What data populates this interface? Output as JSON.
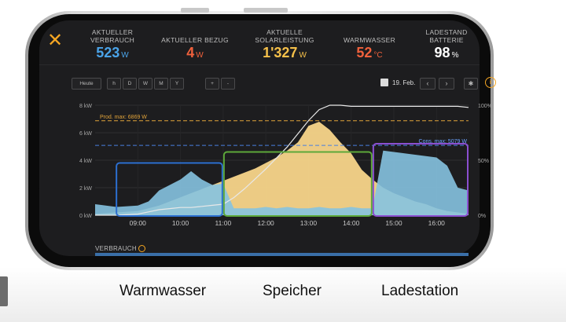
{
  "header": {
    "close_glyph": "✕",
    "stats": [
      {
        "label": "AKTUELLER\nVERBRAUCH",
        "value": "523",
        "unit": "W",
        "color": "#4aa3e8"
      },
      {
        "label": "AKTUELLER BEZUG",
        "value": "4",
        "unit": "W",
        "color": "#f0613c"
      },
      {
        "label": "AKTUELLE\nSOLARLEISTUNG",
        "value": "1'327",
        "unit": "W",
        "color": "#f5c04a"
      },
      {
        "label": "WARMWASSER",
        "value": "52",
        "unit": "°C",
        "color": "#f0613c"
      },
      {
        "label": "LADESTAND\nBATTERIE",
        "value": "98",
        "unit": "%",
        "color": "#ffffff"
      }
    ]
  },
  "controls": {
    "today": "Heute",
    "ranges": [
      "h",
      "D",
      "W",
      "M",
      "Y"
    ],
    "zoom_in": "+",
    "zoom_out": "-",
    "date": "19. Feb.",
    "prev": "‹",
    "next": "›",
    "settings_glyph": "✱",
    "info_glyph": "i"
  },
  "footer": {
    "label": "VERBRAUCH"
  },
  "captions": [
    "Warmwasser",
    "Speicher",
    "Ladestation"
  ],
  "chart_data": {
    "type": "area",
    "x_ticks": [
      "09:00",
      "10:00",
      "11:00",
      "12:00",
      "13:00",
      "14:00",
      "15:00",
      "16:00"
    ],
    "y_ticks": [
      "0 kW",
      "2 kW",
      "4 kW",
      "6 kW",
      "8 kW"
    ],
    "y2_ticks": [
      "0%",
      "50%",
      "100%"
    ],
    "ylim": [
      0,
      8
    ],
    "y2lim": [
      0,
      100
    ],
    "prod_max_label": "Prod. max: 6869 W",
    "prod_max_kw": 6.869,
    "cons_max_label": "Cons. max: 5079 W",
    "cons_max_kw": 5.079,
    "x": [
      8.0,
      8.5,
      9.0,
      9.25,
      9.5,
      9.75,
      10.0,
      10.25,
      10.5,
      10.75,
      11.0,
      11.25,
      11.5,
      11.75,
      12.0,
      12.25,
      12.5,
      12.75,
      13.0,
      13.25,
      13.5,
      13.75,
      14.0,
      14.25,
      14.5,
      14.75,
      15.0,
      15.25,
      15.5,
      15.75,
      16.0,
      16.25,
      16.5,
      16.75
    ],
    "series": [
      {
        "name": "production",
        "color": "#f8d58a",
        "values": [
          0.1,
          0.2,
          0.3,
          0.5,
          0.7,
          1.0,
          1.3,
          1.6,
          1.9,
          2.2,
          2.5,
          2.8,
          3.1,
          3.4,
          3.8,
          4.2,
          4.7,
          5.3,
          6.5,
          6.8,
          6.2,
          5.3,
          4.5,
          3.3,
          2.6,
          2.0,
          1.6,
          1.3,
          1.0,
          0.8,
          0.5,
          0.3,
          0.2,
          0.1
        ]
      },
      {
        "name": "consumption",
        "color": "#86c3e0",
        "values": [
          0.8,
          0.6,
          0.7,
          1.0,
          1.8,
          2.2,
          2.6,
          3.2,
          2.6,
          2.2,
          2.3,
          0.5,
          0.5,
          0.5,
          0.6,
          0.5,
          0.6,
          0.5,
          0.5,
          0.6,
          0.5,
          0.5,
          0.6,
          0.5,
          0.5,
          4.7,
          4.6,
          4.5,
          4.4,
          4.3,
          4.2,
          3.6,
          2.0,
          1.8
        ]
      },
      {
        "name": "battery_soc",
        "color": "#e8e8e8",
        "values": [
          0,
          0,
          1,
          3,
          5,
          6,
          7,
          7,
          8,
          9,
          10,
          16,
          24,
          33,
          42,
          52,
          62,
          74,
          86,
          96,
          100,
          100,
          99,
          99,
          99,
          99,
          99,
          99,
          99,
          99,
          99,
          99,
          99,
          98
        ]
      }
    ],
    "highlights": [
      {
        "color": "#2c6fd0",
        "x_start": 8.5,
        "x_end": 11.0
      },
      {
        "color": "#5da83a",
        "x_start": 11.0,
        "x_end": 14.5
      },
      {
        "color": "#8b4fd0",
        "x_start": 14.5,
        "x_end": 16.75
      }
    ],
    "grid": true
  }
}
